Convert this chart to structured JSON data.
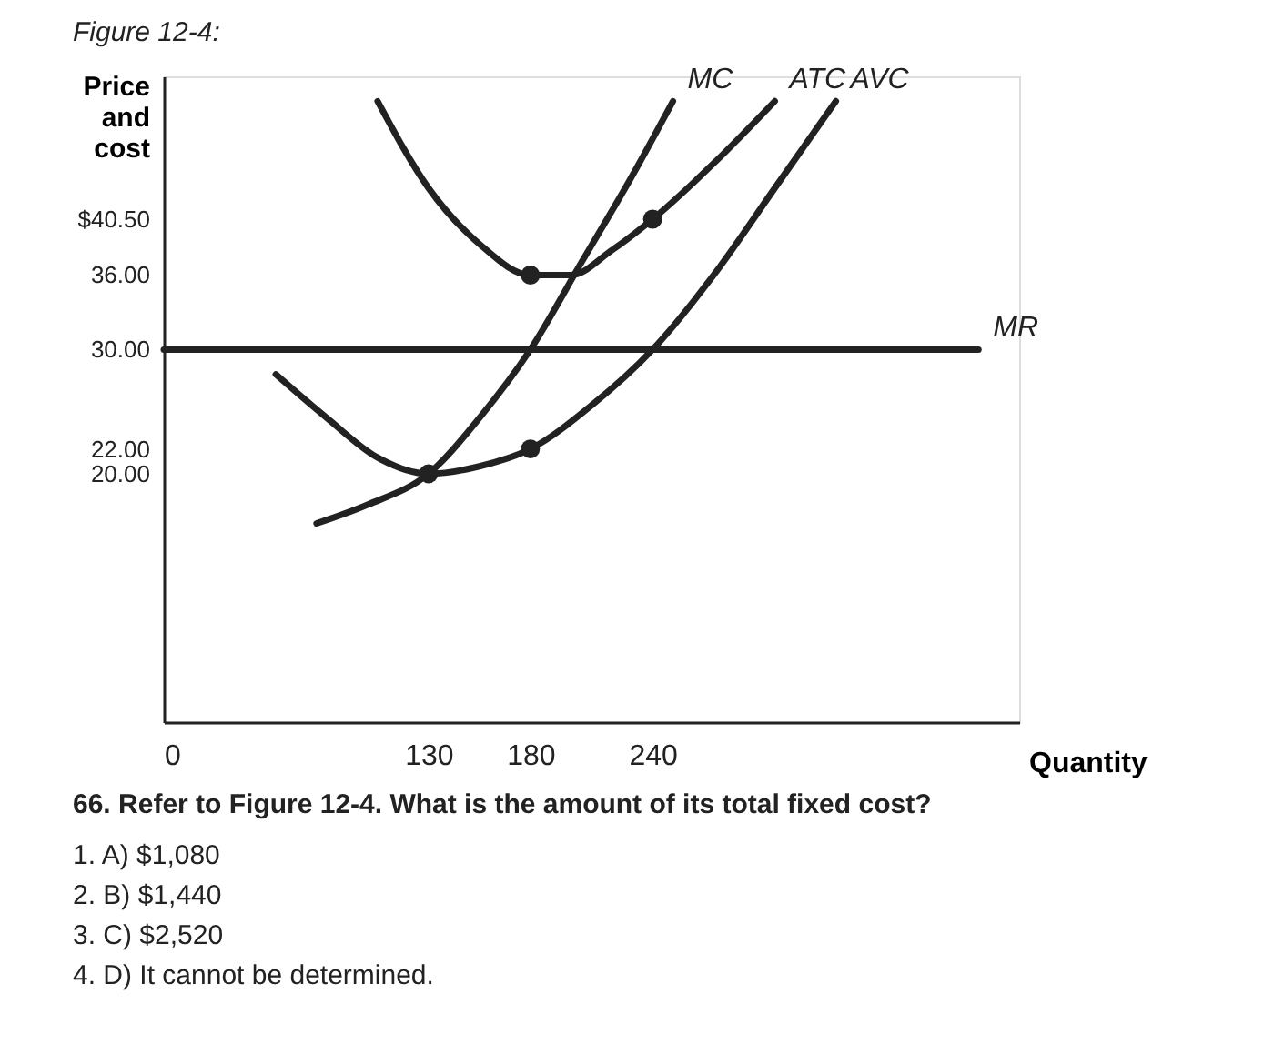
{
  "chart_data": {
    "type": "line",
    "title": "Figure 12-4:",
    "ylabel": "Price and cost",
    "xlabel": "Quantity",
    "xlim": [
      0,
      420
    ],
    "ylim": [
      0,
      52
    ],
    "xticks": [
      0,
      130,
      180,
      240
    ],
    "yticks": [
      {
        "value": 20,
        "label": "20.00"
      },
      {
        "value": 22,
        "label": "22.00"
      },
      {
        "value": 30,
        "label": "30.00"
      },
      {
        "value": 36,
        "label": "36.00"
      },
      {
        "value": 40.5,
        "label": "$40.50"
      }
    ],
    "grid": false,
    "marker": "none",
    "line_style": "solid",
    "series": [
      {
        "name": "MC",
        "color": "#222222",
        "x": [
          75,
          100,
          130,
          155,
          180,
          205,
          230,
          250
        ],
        "values": [
          16,
          17.5,
          20,
          24.5,
          30,
          37,
          44,
          50
        ]
      },
      {
        "name": "ATC",
        "color": "#222222",
        "x": [
          105,
          130,
          155,
          180,
          200,
          220,
          240,
          270,
          300
        ],
        "values": [
          50,
          43,
          38.5,
          36,
          36,
          38,
          40.5,
          45,
          50
        ]
      },
      {
        "name": "AVC",
        "color": "#222222",
        "x": [
          55,
          80,
          105,
          130,
          155,
          180,
          210,
          240,
          270,
          300,
          330
        ],
        "values": [
          28,
          24.5,
          21.3,
          20,
          20.6,
          22,
          25.5,
          30,
          36,
          43,
          50
        ]
      },
      {
        "name": "MR",
        "color": "#222222",
        "x": [
          0,
          400
        ],
        "values": [
          30,
          30
        ]
      },
      {
        "type": "scatter",
        "marker": "circle",
        "color": "#222222",
        "x": [
          130,
          180,
          180,
          240
        ],
        "values": [
          20,
          22,
          36,
          40.5
        ]
      }
    ],
    "annotations": [
      "66. Refer to Figure 12-4. What is the amount of its total fixed cost?",
      "1. A) $1,080",
      "2. B) $1,440",
      "3. C) $2,520",
      "4. D) It cannot be determined."
    ]
  }
}
